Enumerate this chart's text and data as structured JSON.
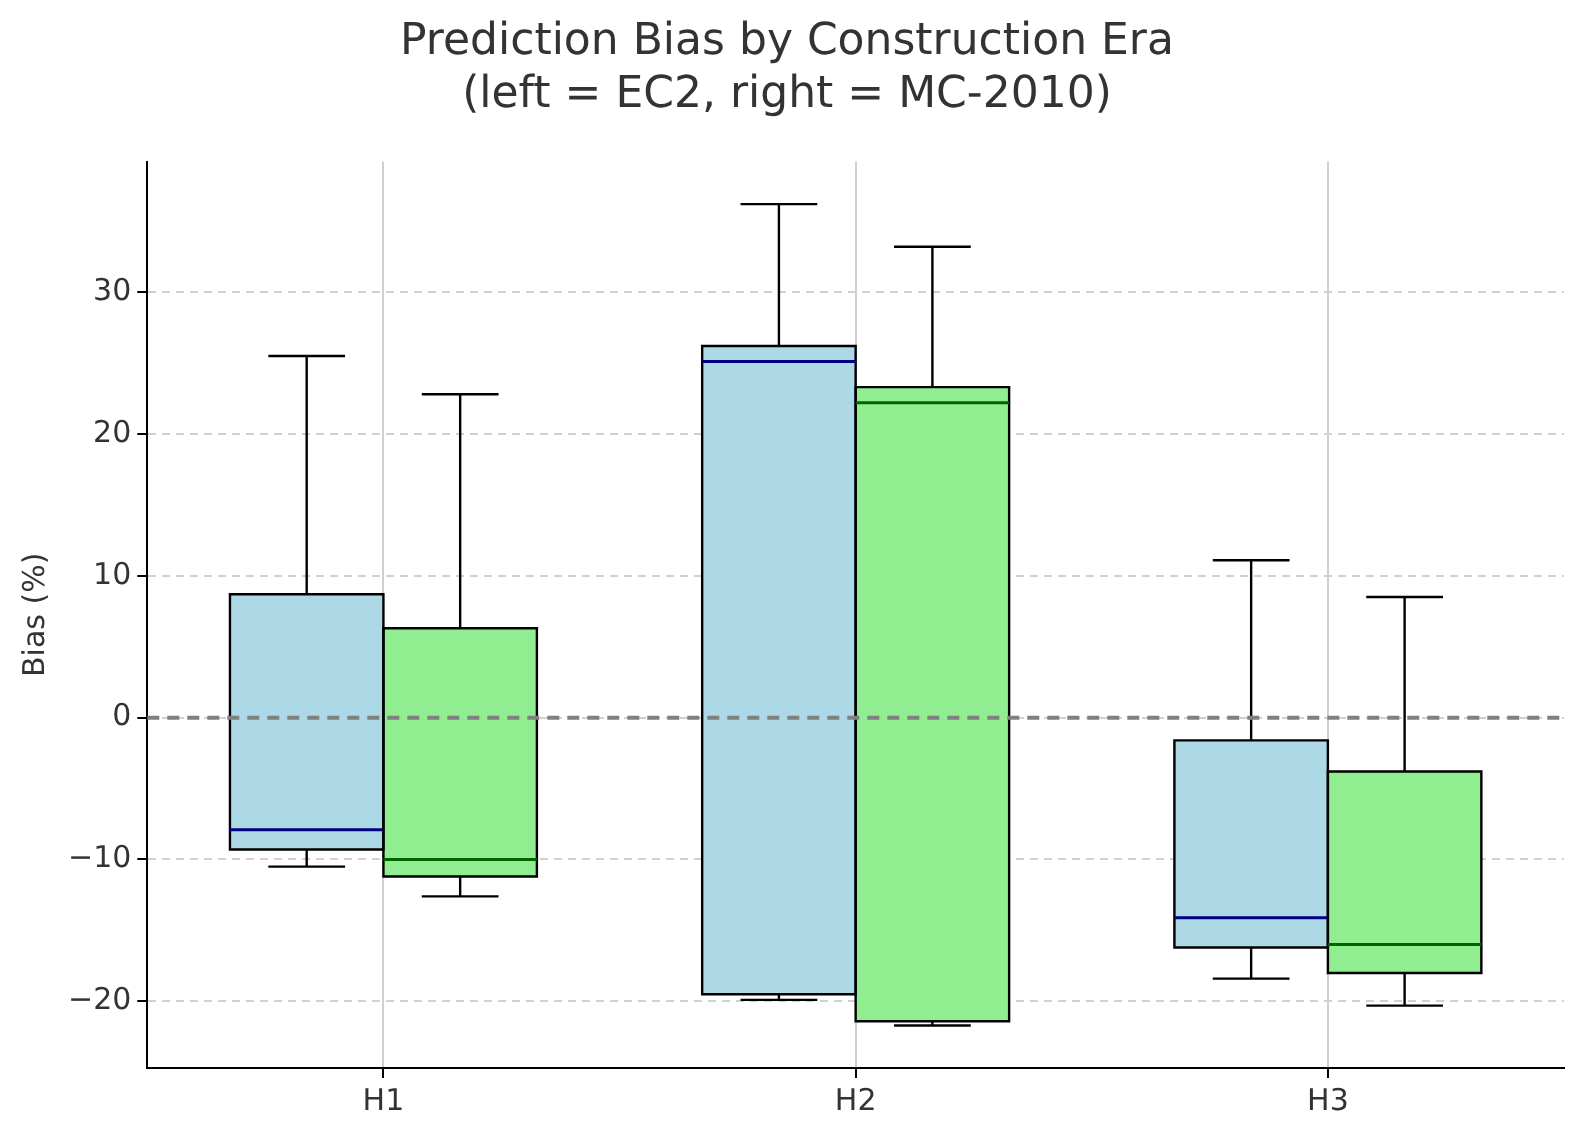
{
  "chart_data": {
    "type": "box",
    "title": "Prediction Bias by Construction Era\n(left = EC2, right = MC-2010)",
    "ylabel": "Bias (%)",
    "categories": [
      "H1",
      "H2",
      "H3"
    ],
    "series": [
      {
        "color": "#add8e6",
        "boxes": [
          {
            "low": -10.5,
            "q1": -9.3,
            "median": -7.9,
            "q3": 8.7,
            "high": 25.5
          },
          {
            "low": -19.9,
            "q1": -19.5,
            "median": 25.1,
            "q3": 26.2,
            "high": 36.2
          },
          {
            "low": -18.4,
            "q1": -16.2,
            "median": -14.1,
            "q3": -1.6,
            "high": 11.1
          }
        ]
      },
      {
        "color": "#90ee90",
        "boxes": [
          {
            "low": -12.6,
            "q1": -11.2,
            "median": -10.0,
            "q3": 6.3,
            "high": 22.8
          },
          {
            "low": -21.7,
            "q1": -21.4,
            "median": 22.2,
            "q3": 23.3,
            "high": 33.2
          },
          {
            "low": -20.3,
            "q1": -18.0,
            "median": -16.0,
            "q3": -3.8,
            "high": 8.5
          }
        ]
      }
    ],
    "ylim": [
      -24.7,
      39.2
    ],
    "yticks": [
      -20,
      -10,
      0,
      10,
      20,
      30
    ],
    "grid": true,
    "legend": false,
    "ref_lines": [
      {
        "axis": "y",
        "value": 0,
        "color": "#808080",
        "line_style": "dashed"
      }
    ]
  }
}
